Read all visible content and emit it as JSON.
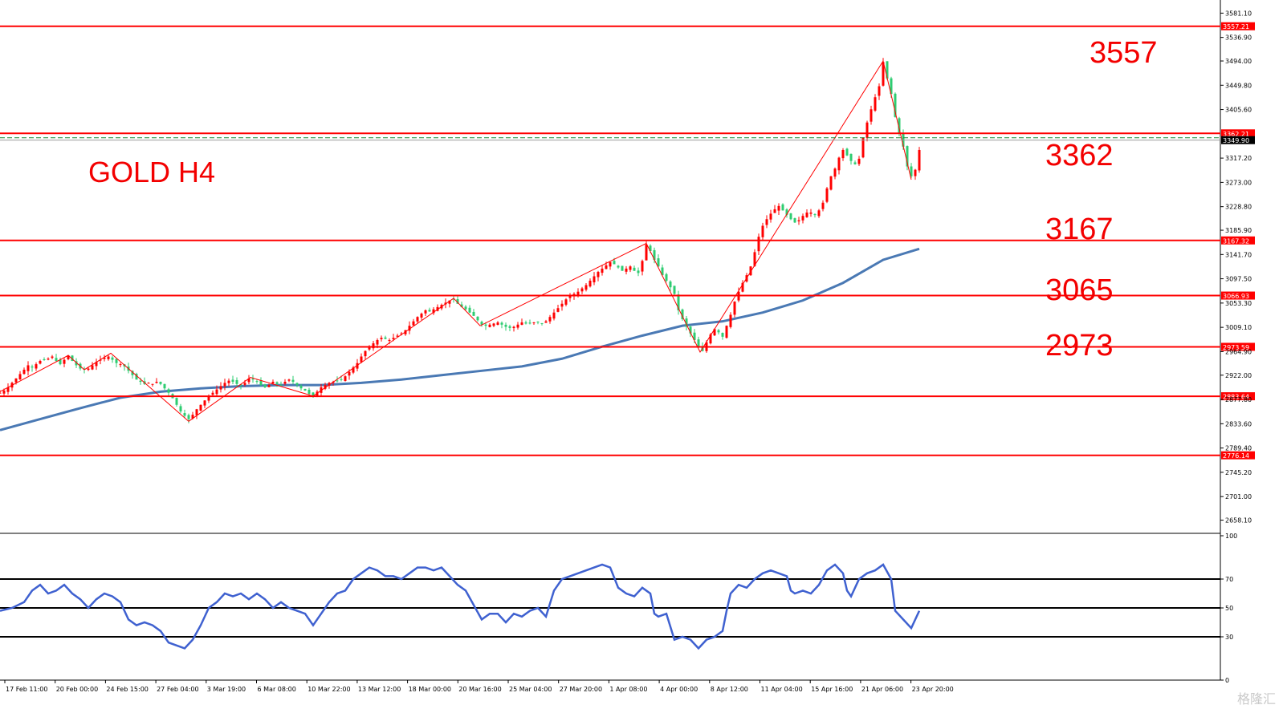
{
  "chart_data": {
    "type": "candlestick",
    "title": "GOLD H4",
    "level_labels": [
      "3557",
      "3362",
      "3167",
      "3065",
      "2973"
    ],
    "price_axis": {
      "range": [
        2637,
        3605
      ],
      "ticks": [
        "3581.10",
        "3536.90",
        "3494.00",
        "3449.80",
        "3405.60",
        "3317.20",
        "3273.00",
        "3228.80",
        "3185.90",
        "3141.70",
        "3097.50",
        "3053.30",
        "3009.10",
        "2964.90",
        "2922.00",
        "2877.80",
        "2833.60",
        "2789.40",
        "2745.20",
        "2701.00",
        "2658.10"
      ]
    },
    "horizontal_levels": [
      {
        "value": 3557.21,
        "label": "3557.21"
      },
      {
        "value": 3362.21,
        "label": "3362.21"
      },
      {
        "value": 3167.32,
        "label": "3167.32"
      },
      {
        "value": 3066.93,
        "label": "3066.93"
      },
      {
        "value": 2973.59,
        "label": "2973.59"
      },
      {
        "value": 2883.64,
        "label": "2883.64"
      },
      {
        "value": 2776.14,
        "label": "2776.14"
      }
    ],
    "current_price": {
      "value": 3349.9,
      "label": "3349.90"
    },
    "time_axis": [
      "17 Feb 11:00",
      "20 Feb 00:00",
      "24 Feb 15:00",
      "27 Feb 04:00",
      "3 Mar 19:00",
      "6 Mar 08:00",
      "10 Mar 22:00",
      "13 Mar 12:00",
      "18 Mar 00:00",
      "20 Mar 16:00",
      "25 Mar 04:00",
      "27 Mar 20:00",
      "1 Apr 08:00",
      "4 Apr 00:00",
      "8 Apr 12:00",
      "11 Apr 04:00",
      "15 Apr 16:00",
      "21 Apr 06:00",
      "23 Apr 20:00"
    ],
    "price_path": [
      [
        0,
        2890
      ],
      [
        5,
        2894
      ],
      [
        10,
        2900
      ],
      [
        15,
        2908
      ],
      [
        20,
        2916
      ],
      [
        25,
        2924
      ],
      [
        30,
        2932
      ],
      [
        35,
        2940
      ],
      [
        40,
        2936
      ],
      [
        45,
        2942
      ],
      [
        50,
        2948
      ],
      [
        55,
        2950
      ],
      [
        60,
        2952
      ],
      [
        65,
        2956
      ],
      [
        70,
        2948
      ],
      [
        75,
        2942
      ],
      [
        80,
        2950
      ],
      [
        85,
        2958
      ],
      [
        90,
        2948
      ],
      [
        95,
        2940
      ],
      [
        100,
        2934
      ],
      [
        105,
        2932
      ],
      [
        110,
        2934
      ],
      [
        115,
        2940
      ],
      [
        120,
        2946
      ],
      [
        125,
        2950
      ],
      [
        130,
        2954
      ],
      [
        135,
        2956
      ],
      [
        140,
        2950
      ],
      [
        145,
        2944
      ],
      [
        150,
        2942
      ],
      [
        155,
        2938
      ],
      [
        160,
        2930
      ],
      [
        165,
        2922
      ],
      [
        170,
        2914
      ],
      [
        175,
        2910
      ],
      [
        180,
        2906
      ],
      [
        185,
        2908
      ],
      [
        190,
        2906
      ],
      [
        195,
        2910
      ],
      [
        200,
        2906
      ],
      [
        205,
        2898
      ],
      [
        210,
        2890
      ],
      [
        215,
        2880
      ],
      [
        220,
        2868
      ],
      [
        225,
        2856
      ],
      [
        230,
        2848
      ],
      [
        235,
        2842
      ],
      [
        240,
        2850
      ],
      [
        245,
        2860
      ],
      [
        250,
        2868
      ],
      [
        255,
        2876
      ],
      [
        260,
        2884
      ],
      [
        265,
        2890
      ],
      [
        270,
        2896
      ],
      [
        275,
        2902
      ],
      [
        280,
        2908
      ],
      [
        285,
        2912
      ],
      [
        290,
        2910
      ],
      [
        295,
        2906
      ],
      [
        300,
        2904
      ],
      [
        305,
        2908
      ],
      [
        310,
        2916
      ],
      [
        315,
        2914
      ],
      [
        320,
        2910
      ],
      [
        325,
        2904
      ],
      [
        330,
        2900
      ],
      [
        335,
        2904
      ],
      [
        340,
        2910
      ],
      [
        345,
        2906
      ],
      [
        350,
        2904
      ],
      [
        355,
        2910
      ],
      [
        360,
        2914
      ],
      [
        365,
        2910
      ],
      [
        370,
        2904
      ],
      [
        375,
        2898
      ],
      [
        380,
        2894
      ],
      [
        385,
        2888
      ],
      [
        390,
        2884
      ],
      [
        395,
        2892
      ],
      [
        400,
        2900
      ],
      [
        405,
        2904
      ],
      [
        410,
        2908
      ],
      [
        415,
        2910
      ],
      [
        420,
        2912
      ],
      [
        425,
        2914
      ],
      [
        430,
        2920
      ],
      [
        435,
        2928
      ],
      [
        440,
        2936
      ],
      [
        445,
        2944
      ],
      [
        450,
        2956
      ],
      [
        455,
        2966
      ],
      [
        460,
        2972
      ],
      [
        465,
        2980
      ],
      [
        470,
        2986
      ],
      [
        475,
        2990
      ],
      [
        480,
        2988
      ],
      [
        485,
        2986
      ],
      [
        490,
        2990
      ],
      [
        495,
        2994
      ],
      [
        500,
        2998
      ],
      [
        505,
        3004
      ],
      [
        510,
        3012
      ],
      [
        515,
        3020
      ],
      [
        520,
        3028
      ],
      [
        525,
        3034
      ],
      [
        530,
        3040
      ],
      [
        535,
        3038
      ],
      [
        540,
        3042
      ],
      [
        545,
        3046
      ],
      [
        550,
        3050
      ],
      [
        555,
        3054
      ],
      [
        560,
        3058
      ],
      [
        565,
        3060
      ],
      [
        570,
        3052
      ],
      [
        575,
        3046
      ],
      [
        580,
        3042
      ],
      [
        585,
        3036
      ],
      [
        590,
        3030
      ],
      [
        595,
        3022
      ],
      [
        600,
        3014
      ],
      [
        605,
        3012
      ],
      [
        610,
        3014
      ],
      [
        615,
        3016
      ],
      [
        620,
        3018
      ],
      [
        625,
        3014
      ],
      [
        630,
        3010
      ],
      [
        635,
        3008
      ],
      [
        640,
        3010
      ],
      [
        645,
        3014
      ],
      [
        650,
        3018
      ],
      [
        655,
        3016
      ],
      [
        660,
        3016
      ],
      [
        665,
        3018
      ],
      [
        670,
        3018
      ],
      [
        675,
        3016
      ],
      [
        680,
        3020
      ],
      [
        685,
        3028
      ],
      [
        690,
        3036
      ],
      [
        695,
        3044
      ],
      [
        700,
        3052
      ],
      [
        705,
        3060
      ],
      [
        710,
        3066
      ],
      [
        715,
        3070
      ],
      [
        720,
        3074
      ],
      [
        725,
        3080
      ],
      [
        730,
        3086
      ],
      [
        735,
        3094
      ],
      [
        740,
        3102
      ],
      [
        745,
        3110
      ],
      [
        750,
        3116
      ],
      [
        755,
        3122
      ],
      [
        760,
        3128
      ],
      [
        765,
        3124
      ],
      [
        770,
        3118
      ],
      [
        775,
        3112
      ],
      [
        780,
        3116
      ],
      [
        785,
        3120
      ],
      [
        790,
        3112
      ],
      [
        795,
        3108
      ],
      [
        800,
        3130
      ],
      [
        805,
        3160
      ],
      [
        810,
        3148
      ],
      [
        815,
        3132
      ],
      [
        820,
        3120
      ],
      [
        825,
        3104
      ],
      [
        830,
        3094
      ],
      [
        835,
        3082
      ],
      [
        840,
        3070
      ],
      [
        845,
        3040
      ],
      [
        850,
        3024
      ],
      [
        855,
        3010
      ],
      [
        860,
        2998
      ],
      [
        865,
        2986
      ],
      [
        870,
        2972
      ],
      [
        875,
        2966
      ],
      [
        880,
        2982
      ],
      [
        885,
        2996
      ],
      [
        890,
        3006
      ],
      [
        895,
        3000
      ],
      [
        900,
        2992
      ],
      [
        905,
        3012
      ],
      [
        910,
        3032
      ],
      [
        915,
        3056
      ],
      [
        920,
        3074
      ],
      [
        925,
        3090
      ],
      [
        930,
        3104
      ],
      [
        935,
        3120
      ],
      [
        940,
        3146
      ],
      [
        945,
        3174
      ],
      [
        950,
        3194
      ],
      [
        955,
        3206
      ],
      [
        960,
        3216
      ],
      [
        965,
        3224
      ],
      [
        970,
        3230
      ],
      [
        975,
        3222
      ],
      [
        980,
        3214
      ],
      [
        985,
        3206
      ],
      [
        990,
        3200
      ],
      [
        995,
        3204
      ],
      [
        1000,
        3212
      ],
      [
        1005,
        3218
      ],
      [
        1010,
        3218
      ],
      [
        1015,
        3214
      ],
      [
        1020,
        3222
      ],
      [
        1025,
        3236
      ],
      [
        1030,
        3262
      ],
      [
        1035,
        3284
      ],
      [
        1040,
        3298
      ],
      [
        1045,
        3318
      ],
      [
        1050,
        3332
      ],
      [
        1055,
        3322
      ],
      [
        1060,
        3312
      ],
      [
        1065,
        3306
      ],
      [
        1070,
        3316
      ],
      [
        1075,
        3354
      ],
      [
        1080,
        3382
      ],
      [
        1085,
        3406
      ],
      [
        1090,
        3428
      ],
      [
        1095,
        3448
      ],
      [
        1100,
        3492
      ],
      [
        1105,
        3462
      ],
      [
        1110,
        3434
      ],
      [
        1115,
        3392
      ],
      [
        1120,
        3362
      ],
      [
        1125,
        3338
      ],
      [
        1130,
        3302
      ],
      [
        1135,
        3284
      ],
      [
        1140,
        3296
      ],
      [
        1145,
        3332
      ]
    ],
    "moving_average": [
      [
        0,
        2822
      ],
      [
        50,
        2842
      ],
      [
        100,
        2862
      ],
      [
        150,
        2881
      ],
      [
        200,
        2892
      ],
      [
        250,
        2898
      ],
      [
        300,
        2902
      ],
      [
        350,
        2904
      ],
      [
        400,
        2904
      ],
      [
        450,
        2908
      ],
      [
        500,
        2914
      ],
      [
        550,
        2922
      ],
      [
        600,
        2930
      ],
      [
        650,
        2938
      ],
      [
        700,
        2952
      ],
      [
        750,
        2974
      ],
      [
        800,
        2994
      ],
      [
        850,
        3012
      ],
      [
        900,
        3020
      ],
      [
        950,
        3036
      ],
      [
        1000,
        3058
      ],
      [
        1050,
        3090
      ],
      [
        1100,
        3132
      ],
      [
        1145,
        3152
      ]
    ],
    "zigzag": [
      [
        0,
        2892
      ],
      [
        85,
        2958
      ],
      [
        105,
        2932
      ],
      [
        138,
        2962
      ],
      [
        235,
        2838
      ],
      [
        312,
        2918
      ],
      [
        390,
        2884
      ],
      [
        565,
        3062
      ],
      [
        598,
        3012
      ],
      [
        805,
        3162
      ],
      [
        872,
        2964
      ],
      [
        1100,
        3494
      ],
      [
        1135,
        3278
      ]
    ],
    "rsi": {
      "ticks": [
        "100",
        "70",
        "50",
        "30",
        "0"
      ],
      "levels": [
        70,
        50,
        30
      ],
      "values": [
        [
          0,
          48
        ],
        [
          15,
          50
        ],
        [
          30,
          54
        ],
        [
          40,
          62
        ],
        [
          50,
          66
        ],
        [
          60,
          60
        ],
        [
          70,
          62
        ],
        [
          80,
          66
        ],
        [
          90,
          60
        ],
        [
          100,
          56
        ],
        [
          110,
          50
        ],
        [
          120,
          56
        ],
        [
          130,
          60
        ],
        [
          140,
          58
        ],
        [
          150,
          54
        ],
        [
          160,
          42
        ],
        [
          170,
          38
        ],
        [
          180,
          40
        ],
        [
          190,
          38
        ],
        [
          200,
          34
        ],
        [
          210,
          26
        ],
        [
          220,
          24
        ],
        [
          230,
          22
        ],
        [
          240,
          28
        ],
        [
          250,
          38
        ],
        [
          260,
          50
        ],
        [
          270,
          54
        ],
        [
          280,
          60
        ],
        [
          290,
          58
        ],
        [
          300,
          60
        ],
        [
          310,
          56
        ],
        [
          320,
          60
        ],
        [
          330,
          56
        ],
        [
          340,
          50
        ],
        [
          350,
          54
        ],
        [
          360,
          50
        ],
        [
          370,
          48
        ],
        [
          380,
          46
        ],
        [
          390,
          38
        ],
        [
          400,
          46
        ],
        [
          410,
          54
        ],
        [
          420,
          60
        ],
        [
          430,
          62
        ],
        [
          440,
          70
        ],
        [
          450,
          74
        ],
        [
          460,
          78
        ],
        [
          470,
          76
        ],
        [
          480,
          72
        ],
        [
          490,
          72
        ],
        [
          500,
          70
        ],
        [
          510,
          74
        ],
        [
          520,
          78
        ],
        [
          530,
          78
        ],
        [
          540,
          76
        ],
        [
          550,
          78
        ],
        [
          560,
          72
        ],
        [
          570,
          66
        ],
        [
          580,
          62
        ],
        [
          590,
          52
        ],
        [
          600,
          42
        ],
        [
          610,
          46
        ],
        [
          620,
          46
        ],
        [
          630,
          40
        ],
        [
          640,
          46
        ],
        [
          650,
          44
        ],
        [
          660,
          48
        ],
        [
          670,
          50
        ],
        [
          680,
          44
        ],
        [
          690,
          62
        ],
        [
          700,
          70
        ],
        [
          710,
          72
        ],
        [
          720,
          74
        ],
        [
          730,
          76
        ],
        [
          740,
          78
        ],
        [
          750,
          80
        ],
        [
          760,
          78
        ],
        [
          770,
          64
        ],
        [
          780,
          60
        ],
        [
          790,
          58
        ],
        [
          800,
          64
        ],
        [
          810,
          60
        ],
        [
          815,
          46
        ],
        [
          820,
          44
        ],
        [
          830,
          46
        ],
        [
          840,
          28
        ],
        [
          850,
          30
        ],
        [
          860,
          28
        ],
        [
          870,
          22
        ],
        [
          880,
          28
        ],
        [
          890,
          30
        ],
        [
          900,
          34
        ],
        [
          905,
          48
        ],
        [
          910,
          60
        ],
        [
          920,
          66
        ],
        [
          930,
          64
        ],
        [
          940,
          70
        ],
        [
          950,
          74
        ],
        [
          960,
          76
        ],
        [
          970,
          74
        ],
        [
          980,
          72
        ],
        [
          985,
          62
        ],
        [
          990,
          60
        ],
        [
          1000,
          62
        ],
        [
          1010,
          60
        ],
        [
          1020,
          66
        ],
        [
          1030,
          76
        ],
        [
          1040,
          80
        ],
        [
          1050,
          74
        ],
        [
          1055,
          62
        ],
        [
          1060,
          58
        ],
        [
          1070,
          70
        ],
        [
          1080,
          74
        ],
        [
          1090,
          76
        ],
        [
          1100,
          80
        ],
        [
          1110,
          70
        ],
        [
          1115,
          48
        ],
        [
          1125,
          42
        ],
        [
          1135,
          36
        ],
        [
          1145,
          48
        ]
      ]
    },
    "colors": {
      "up": "#ff0000",
      "down": "#2ecc71",
      "moving_average": "#4a79b4",
      "rsi_line": "#3f61d0",
      "level": "#ff0000",
      "text": "#f30000"
    }
  },
  "watermark": "格隆汇"
}
